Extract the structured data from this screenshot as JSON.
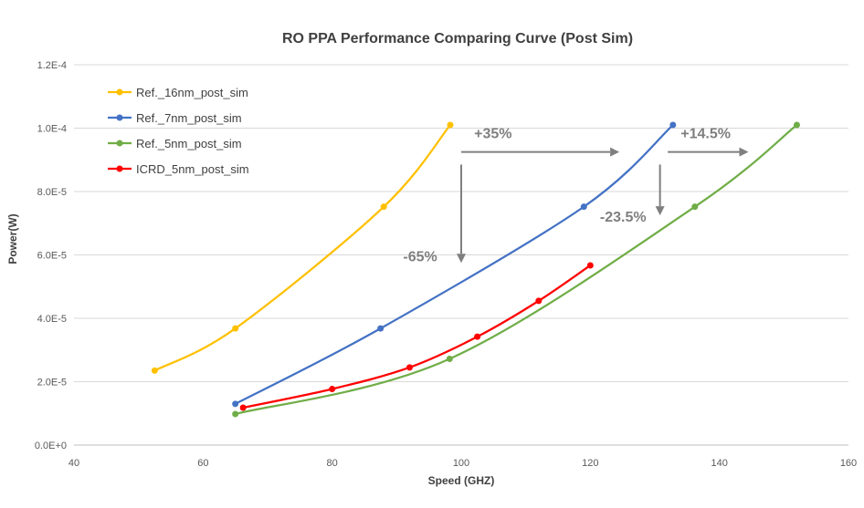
{
  "chart_data": {
    "type": "line",
    "title": "RO PPA  Performance Comparing Curve (Post Sim)",
    "xlabel": "Speed (GHZ)",
    "ylabel": "Power(W)",
    "xlim": [
      40,
      160
    ],
    "ylim": [
      0,
      0.00012
    ],
    "x_ticks": [
      "40",
      "60",
      "80",
      "100",
      "120",
      "140",
      "160"
    ],
    "x_tick_values": [
      40,
      60,
      80,
      100,
      120,
      140,
      160
    ],
    "y_ticks": [
      "0.0E+0",
      "2.0E-5",
      "4.0E-5",
      "6.0E-5",
      "8.0E-5",
      "1.0E-4",
      "1.2E-4"
    ],
    "y_tick_values": [
      0,
      2e-05,
      4e-05,
      6e-05,
      8e-05,
      0.0001,
      0.00012
    ],
    "grid": "horizontal",
    "legend_position": "top-left",
    "series": [
      {
        "name": "Ref._16nm_post_sim",
        "color": "#FFC000",
        "points": [
          [
            52.5,
            2.35e-05
          ],
          [
            65,
            3.68e-05
          ],
          [
            88,
            7.52e-05
          ],
          [
            98.3,
            0.000101
          ]
        ]
      },
      {
        "name": "Ref._7nm_post_sim",
        "color": "#4472C4",
        "points": [
          [
            65,
            1.3e-05
          ],
          [
            87.5,
            3.68e-05
          ],
          [
            119,
            7.52e-05
          ],
          [
            132.8,
            0.000101
          ]
        ]
      },
      {
        "name": "Ref._5nm_post_sim",
        "color": "#70AD47",
        "points": [
          [
            65,
            9.8e-06
          ],
          [
            98.2,
            2.72e-05
          ],
          [
            136.2,
            7.52e-05
          ],
          [
            152,
            0.000101
          ]
        ]
      },
      {
        "name": "ICRD_5nm_post_sim",
        "color": "#FF0000",
        "points": [
          [
            66.2,
            1.18e-05
          ],
          [
            80,
            1.77e-05
          ],
          [
            92,
            2.45e-05
          ],
          [
            102.5,
            3.42e-05
          ],
          [
            112,
            4.55e-05
          ],
          [
            120,
            5.67e-05
          ]
        ]
      }
    ],
    "annotations": [
      {
        "text": "+35%",
        "x": 102,
        "y": 9.68e-05,
        "arrow": {
          "x1": 100,
          "y1": 9.25e-05,
          "x2": 124.5,
          "y2": 9.25e-05
        }
      },
      {
        "text": "+14.5%",
        "x": 134,
        "y": 9.68e-05,
        "arrow": {
          "x1": 132,
          "y1": 9.25e-05,
          "x2": 144.5,
          "y2": 9.25e-05
        }
      },
      {
        "text": "-65%",
        "x": 91,
        "y": 5.8e-05,
        "arrow": {
          "x1": 100,
          "y1": 8.85e-05,
          "x2": 100,
          "y2": 5.75e-05
        }
      },
      {
        "text": "-23.5%",
        "x": 121.5,
        "y": 7.05e-05,
        "arrow": {
          "x1": 130.8,
          "y1": 8.85e-05,
          "x2": 130.8,
          "y2": 7.25e-05
        }
      }
    ]
  }
}
